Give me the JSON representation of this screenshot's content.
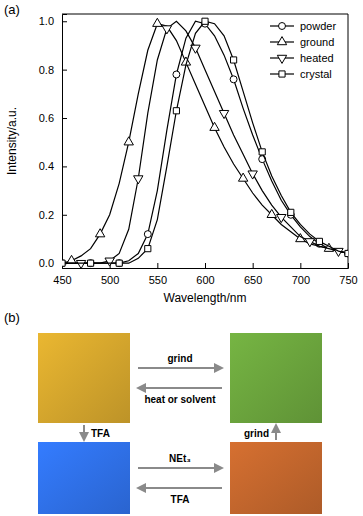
{
  "chart_data": {
    "type": "line",
    "title": "(a)",
    "x_label": "Wavelength/nm",
    "y_label": "Intensity/a.u.",
    "x": [
      450,
      460,
      470,
      480,
      490,
      500,
      510,
      520,
      530,
      540,
      550,
      560,
      570,
      580,
      590,
      600,
      610,
      620,
      630,
      640,
      650,
      660,
      670,
      680,
      690,
      700,
      710,
      720,
      730,
      740,
      750
    ],
    "series": [
      {
        "name": "powder",
        "color": "#000000",
        "marker": "circle",
        "values": [
          0,
          0,
          0,
          0,
          0,
          0,
          0,
          0.01,
          0.04,
          0.12,
          0.3,
          0.55,
          0.78,
          0.93,
          1.0,
          0.99,
          0.94,
          0.86,
          0.76,
          0.64,
          0.53,
          0.43,
          0.34,
          0.26,
          0.2,
          0.15,
          0.11,
          0.08,
          0.06,
          0.05,
          0.04
        ]
      },
      {
        "name": "ground",
        "color": "#000000",
        "marker": "triangle-up",
        "values": [
          0,
          0.01,
          0.03,
          0.06,
          0.12,
          0.2,
          0.33,
          0.5,
          0.7,
          0.88,
          0.99,
          0.98,
          0.92,
          0.83,
          0.74,
          0.65,
          0.56,
          0.48,
          0.41,
          0.35,
          0.29,
          0.24,
          0.2,
          0.16,
          0.13,
          0.1,
          0.08,
          0.07,
          0.06,
          0.05,
          0.04
        ]
      },
      {
        "name": "heated",
        "color": "#000000",
        "marker": "triangle-down",
        "values": [
          0,
          0,
          0,
          0,
          0,
          0.01,
          0.04,
          0.14,
          0.35,
          0.62,
          0.84,
          0.97,
          1.0,
          0.96,
          0.89,
          0.8,
          0.71,
          0.62,
          0.53,
          0.45,
          0.37,
          0.3,
          0.24,
          0.19,
          0.15,
          0.11,
          0.09,
          0.07,
          0.06,
          0.05,
          0.04
        ]
      },
      {
        "name": "crystal",
        "color": "#000000",
        "marker": "square",
        "values": [
          0,
          0,
          0,
          0,
          0,
          0,
          0,
          0,
          0.02,
          0.06,
          0.18,
          0.4,
          0.63,
          0.82,
          0.95,
          1.0,
          0.99,
          0.94,
          0.84,
          0.71,
          0.58,
          0.46,
          0.36,
          0.28,
          0.21,
          0.16,
          0.12,
          0.09,
          0.07,
          0.05,
          0.04
        ]
      }
    ],
    "xlim": [
      450,
      750
    ],
    "xticks": [
      450,
      500,
      550,
      600,
      650,
      700,
      750
    ],
    "ylim": [
      -0.02,
      1.03
    ],
    "yticks": [
      {
        "value": 0,
        "label": "0.0"
      },
      {
        "value": 0.2,
        "label": "0.2"
      },
      {
        "value": 0.4,
        "label": "0.4"
      },
      {
        "value": 0.6,
        "label": "0.6"
      },
      {
        "value": 0.8,
        "label": "0.8"
      },
      {
        "value": 1.0,
        "label": "1.0"
      }
    ],
    "legend": "upper right",
    "grid": false
  },
  "diagram": {
    "label": "(b)",
    "nodes": [
      {
        "color": "#d2a42c"
      },
      {
        "color": "#6aa33c"
      },
      {
        "color": "#2f6fe6"
      },
      {
        "color": "#c0652c"
      }
    ],
    "edges": [
      {
        "from": 0,
        "to": 1,
        "label": "grind"
      },
      {
        "from": 1,
        "to": 0,
        "label": "heat or solvent"
      },
      {
        "from": 0,
        "to": 2,
        "label": "TFA"
      },
      {
        "from": 2,
        "to": 3,
        "label": "NEt₃"
      },
      {
        "from": 3,
        "to": 2,
        "label": "TFA"
      },
      {
        "from": 3,
        "to": 1,
        "label": "grind"
      }
    ]
  }
}
